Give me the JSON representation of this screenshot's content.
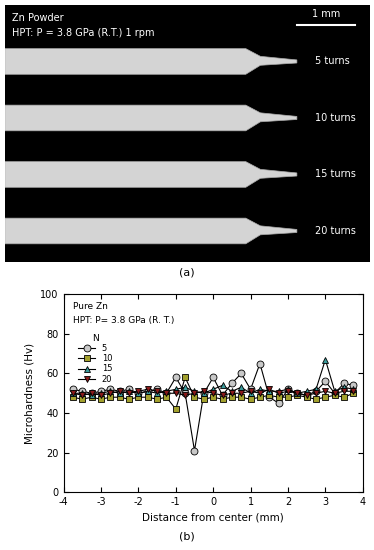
{
  "panel_a": {
    "label": "(a)",
    "title": "Zn Powder",
    "subtitle": "HPT: P = 3.8 GPa (R.T.) 1 rpm",
    "scale_bar": "1 mm",
    "rows": [
      "5 turns",
      "10 turns",
      "15 turns",
      "20 turns"
    ]
  },
  "chart_data": {
    "type": "line",
    "label": "(b)",
    "annotations": [
      "Pure Zn",
      "HPT: P= 3.8 GPa (R. T.)"
    ],
    "legend_title": "N",
    "x_label": "Distance from center (mm)",
    "y_label": "Microhardness (Hv)",
    "x": [
      -3.75,
      -3.5,
      -3.25,
      -3.0,
      -2.75,
      -2.5,
      -2.25,
      -2.0,
      -1.75,
      -1.5,
      -1.25,
      -1.0,
      -0.75,
      -0.5,
      -0.25,
      0.0,
      0.25,
      0.5,
      0.75,
      1.0,
      1.25,
      1.5,
      1.75,
      2.0,
      2.25,
      2.5,
      2.75,
      3.0,
      3.25,
      3.5,
      3.75
    ],
    "series": [
      {
        "name": "5",
        "color": "#c8c8c8",
        "marker": "circle",
        "values": [
          52,
          51,
          50,
          51,
          52,
          51,
          52,
          50,
          51,
          52,
          50,
          58,
          50,
          21,
          50,
          58,
          49,
          55,
          60,
          52,
          65,
          48,
          45,
          52,
          50,
          49,
          51,
          56,
          50,
          55,
          54
        ]
      },
      {
        "name": "10",
        "color": "#a3a12e",
        "marker": "square",
        "values": [
          48,
          47,
          48,
          47,
          48,
          48,
          47,
          48,
          48,
          47,
          48,
          42,
          58,
          48,
          47,
          48,
          47,
          48,
          48,
          47,
          48,
          49,
          48,
          48,
          49,
          48,
          47,
          48,
          49,
          48,
          50
        ]
      },
      {
        "name": "15",
        "color": "#3a9a9a",
        "marker": "triangle_up",
        "values": [
          50,
          50,
          49,
          50,
          51,
          50,
          51,
          50,
          51,
          50,
          51,
          52,
          53,
          51,
          50,
          52,
          54,
          51,
          53,
          50,
          52,
          51,
          51,
          52,
          50,
          51,
          52,
          67,
          51,
          53,
          52
        ]
      },
      {
        "name": "20",
        "color": "#8b1a1a",
        "marker": "triangle_down",
        "values": [
          50,
          49,
          50,
          49,
          50,
          51,
          50,
          51,
          52,
          51,
          50,
          50,
          49,
          50,
          51,
          50,
          49,
          50,
          50,
          51,
          50,
          52,
          50,
          51,
          50,
          49,
          50,
          51,
          50,
          51,
          51
        ]
      }
    ],
    "xlim": [
      -4,
      4
    ],
    "ylim": [
      0,
      100
    ],
    "xticks": [
      -4,
      -3,
      -2,
      -1,
      0,
      1,
      2,
      3,
      4
    ],
    "yticks": [
      0,
      20,
      40,
      60,
      80,
      100
    ],
    "legend": "upper left"
  }
}
